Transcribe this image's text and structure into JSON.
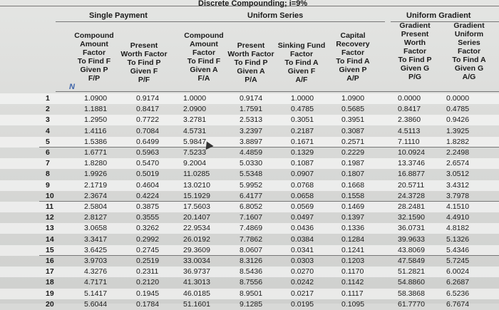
{
  "headings": {
    "top_center": "Discrete Compounding; i=9%",
    "single_payment": "Single Payment",
    "uniform_series": "Uniform Series",
    "uniform_gradient": "Uniform Gradient"
  },
  "column_headers": [
    {
      "key": "N",
      "lines": [
        "N"
      ]
    },
    {
      "key": "FP",
      "lines": [
        "Compound",
        "Amount",
        "Factor",
        "To Find F",
        "Given P",
        "F/P"
      ]
    },
    {
      "key": "PF",
      "lines": [
        "Present",
        "Worth Factor",
        "To Find P",
        "Given F",
        "P/F"
      ]
    },
    {
      "key": "FA",
      "lines": [
        "Compound",
        "Amount",
        "Factor",
        "To Find F",
        "Given A",
        "F/A"
      ]
    },
    {
      "key": "PA",
      "lines": [
        "Present",
        "Worth Factor",
        "To Find P",
        "Given A",
        "P/A"
      ]
    },
    {
      "key": "AF",
      "lines": [
        "Sinking Fund",
        "Factor",
        "To Find A",
        "Given F",
        "A/F"
      ]
    },
    {
      "key": "AP",
      "lines": [
        "Capital",
        "Recovery",
        "Factor",
        "To Find A",
        "Given P",
        "A/P"
      ]
    },
    {
      "key": "PG",
      "lines": [
        "Gradient",
        "Present",
        "Worth",
        "Factor",
        "To Find P",
        "Given G",
        "P/G"
      ]
    },
    {
      "key": "AG",
      "lines": [
        "Gradient",
        "Uniform",
        "Series",
        "Factor",
        "To Find A",
        "Given G",
        "A/G"
      ]
    }
  ],
  "rows": [
    [
      "1",
      "1.0900",
      "0.9174",
      "1.0000",
      "0.9174",
      "1.0000",
      "1.0900",
      "0.0000",
      "0.0000"
    ],
    [
      "2",
      "1.1881",
      "0.8417",
      "2.0900",
      "1.7591",
      "0.4785",
      "0.5685",
      "0.8417",
      "0.4785"
    ],
    [
      "3",
      "1.2950",
      "0.7722",
      "3.2781",
      "2.5313",
      "0.3051",
      "0.3951",
      "2.3860",
      "0.9426"
    ],
    [
      "4",
      "1.4116",
      "0.7084",
      "4.5731",
      "3.2397",
      "0.2187",
      "0.3087",
      "4.5113",
      "1.3925"
    ],
    [
      "5",
      "1.5386",
      "0.6499",
      "5.9847",
      "3.8897",
      "0.1671",
      "0.2571",
      "7.1110",
      "1.8282"
    ],
    [
      "6",
      "1.6771",
      "0.5963",
      "7.5233",
      "4.4859",
      "0.1329",
      "0.2229",
      "10.0924",
      "2.2498"
    ],
    [
      "7",
      "1.8280",
      "0.5470",
      "9.2004",
      "5.0330",
      "0.1087",
      "0.1987",
      "13.3746",
      "2.6574"
    ],
    [
      "8",
      "1.9926",
      "0.5019",
      "11.0285",
      "5.5348",
      "0.0907",
      "0.1807",
      "16.8877",
      "3.0512"
    ],
    [
      "9",
      "2.1719",
      "0.4604",
      "13.0210",
      "5.9952",
      "0.0768",
      "0.1668",
      "20.5711",
      "3.4312"
    ],
    [
      "10",
      "2.3674",
      "0.4224",
      "15.1929",
      "6.4177",
      "0.0658",
      "0.1558",
      "24.3728",
      "3.7978"
    ],
    [
      "11",
      "2.5804",
      "0.3875",
      "17.5603",
      "6.8052",
      "0.0569",
      "0.1469",
      "28.2481",
      "4.1510"
    ],
    [
      "12",
      "2.8127",
      "0.3555",
      "20.1407",
      "7.1607",
      "0.0497",
      "0.1397",
      "32.1590",
      "4.4910"
    ],
    [
      "13",
      "3.0658",
      "0.3262",
      "22.9534",
      "7.4869",
      "0.0436",
      "0.1336",
      "36.0731",
      "4.8182"
    ],
    [
      "14",
      "3.3417",
      "0.2992",
      "26.0192",
      "7.7862",
      "0.0384",
      "0.1284",
      "39.9633",
      "5.1326"
    ],
    [
      "15",
      "3.6425",
      "0.2745",
      "29.3609",
      "8.0607",
      "0.0341",
      "0.1241",
      "43.8069",
      "5.4346"
    ],
    [
      "16",
      "3.9703",
      "0.2519",
      "33.0034",
      "8.3126",
      "0.0303",
      "0.1203",
      "47.5849",
      "5.7245"
    ],
    [
      "17",
      "4.3276",
      "0.2311",
      "36.9737",
      "8.5436",
      "0.0270",
      "0.1170",
      "51.2821",
      "6.0024"
    ],
    [
      "18",
      "4.7171",
      "0.2120",
      "41.3013",
      "8.7556",
      "0.0242",
      "0.1142",
      "54.8860",
      "6.2687"
    ],
    [
      "19",
      "5.1417",
      "0.1945",
      "46.0185",
      "8.9501",
      "0.0217",
      "0.1117",
      "58.3868",
      "6.5236"
    ],
    [
      "20",
      "5.6044",
      "0.1784",
      "51.1601",
      "9.1285",
      "0.0195",
      "0.1095",
      "61.7770",
      "6.7674"
    ]
  ]
}
